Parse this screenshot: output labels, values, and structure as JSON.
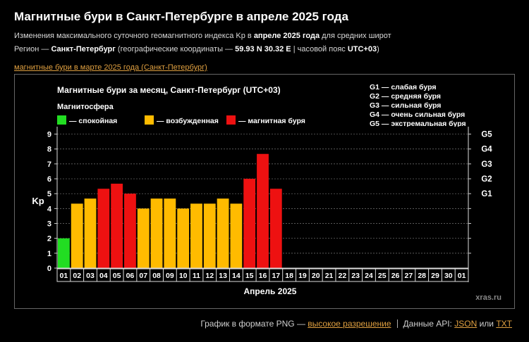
{
  "header": {
    "title": "Магнитные бури в Санкт-Петербурге в апреле 2025 года",
    "line1": {
      "a": "Изменения максимального суточного геомагнитного индекса Kp в ",
      "b": "апреле 2025 года",
      "c": " для средних широт"
    },
    "line2": {
      "a": "Регион — ",
      "b": "Санкт-Петербург",
      "c": " (географические координаты — ",
      "d": "59.93 N 30.32 E",
      "e": " | часовой пояс ",
      "f": "UTC+03",
      "g": ")"
    },
    "prev_link": "магнитные бури в марте 2025 года (Санкт-Петербург)"
  },
  "chart_data": {
    "type": "bar",
    "title": "Магнитные бури за месяц, Санкт-Петербург (UTC+03)",
    "xlabel": "Апрель 2025",
    "ylabel": "Kp",
    "ylim": [
      0,
      9.5
    ],
    "yticks": [
      "0",
      "1",
      "2",
      "3",
      "4",
      "5",
      "6",
      "7",
      "8",
      "9"
    ],
    "right_ticks": [
      {
        "value": 5,
        "label": "G1"
      },
      {
        "value": 6,
        "label": "G2"
      },
      {
        "value": 7,
        "label": "G3"
      },
      {
        "value": 8,
        "label": "G4"
      },
      {
        "value": 9,
        "label": "G5"
      }
    ],
    "categories": [
      "01",
      "02",
      "03",
      "04",
      "05",
      "06",
      "07",
      "08",
      "09",
      "10",
      "11",
      "12",
      "13",
      "14",
      "15",
      "16",
      "17",
      "18",
      "19",
      "20",
      "21",
      "22",
      "23",
      "24",
      "25",
      "26",
      "27",
      "28",
      "29",
      "30",
      "01"
    ],
    "values": [
      2.0,
      4.33,
      4.67,
      5.33,
      5.67,
      5.0,
      4.0,
      4.67,
      4.67,
      4.0,
      4.33,
      4.33,
      4.67,
      4.33,
      6.0,
      7.67,
      5.33,
      null,
      null,
      null,
      null,
      null,
      null,
      null,
      null,
      null,
      null,
      null,
      null,
      null,
      null
    ],
    "colors": {
      "quiet": "#22dd22",
      "unsettled": "#ffbb00",
      "storm": "#ee1111"
    },
    "legend": {
      "title": "Магнитосфера",
      "items": [
        {
          "key": "quiet",
          "label": "— спокойная"
        },
        {
          "key": "unsettled",
          "label": "— возбужденная"
        },
        {
          "key": "storm",
          "label": "— магнитная буря"
        }
      ]
    },
    "scale": [
      "G1 — слабая буря",
      "G2 — средняя буря",
      "G3 — сильная буря",
      "G4 — очень сильная буря",
      "G5 — экстремальная буря"
    ],
    "watermark": "xras.ru",
    "grid": true
  },
  "footer": {
    "png_text": "График в формате PNG — ",
    "png_link": "высокое разрешение",
    "api_text": "Данные API: ",
    "json_link": "JSON",
    "or_text": " или ",
    "txt_link": "TXT"
  }
}
